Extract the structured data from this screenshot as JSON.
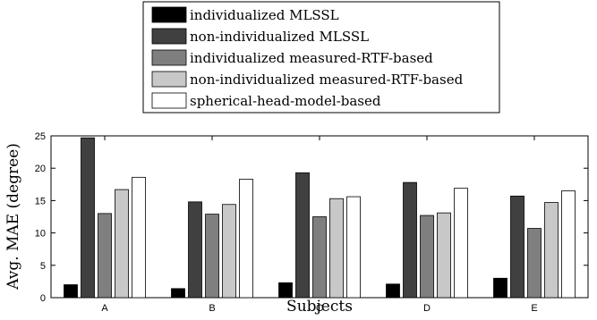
{
  "chart_data": {
    "type": "bar",
    "title": "",
    "xlabel": "Subjects",
    "ylabel": "Avg. MAE (degree)",
    "categories": [
      "A",
      "B",
      "C",
      "D",
      "E"
    ],
    "ylim": [
      0,
      25
    ],
    "yticks": [
      0,
      5,
      10,
      15,
      20,
      25
    ],
    "grid": false,
    "legend_position": "top-center, outside plot",
    "series": [
      {
        "name": "individualized MLSSL",
        "color": "#000000",
        "values": [
          2.0,
          1.4,
          2.3,
          2.1,
          3.0
        ]
      },
      {
        "name": "non-individualized MLSSL",
        "color": "#404040",
        "values": [
          24.7,
          14.8,
          19.3,
          17.8,
          15.7
        ]
      },
      {
        "name": "individualized measured-RTF-based",
        "color": "#7f7f7f",
        "values": [
          13.0,
          12.9,
          12.5,
          12.7,
          10.7
        ]
      },
      {
        "name": "non-individualized measured-RTF-based",
        "color": "#c8c8c8",
        "values": [
          16.7,
          14.4,
          15.3,
          13.1,
          14.7
        ]
      },
      {
        "name": "spherical-head-model-based",
        "color": "#ffffff",
        "values": [
          18.6,
          18.3,
          15.6,
          16.9,
          16.5
        ]
      }
    ]
  }
}
